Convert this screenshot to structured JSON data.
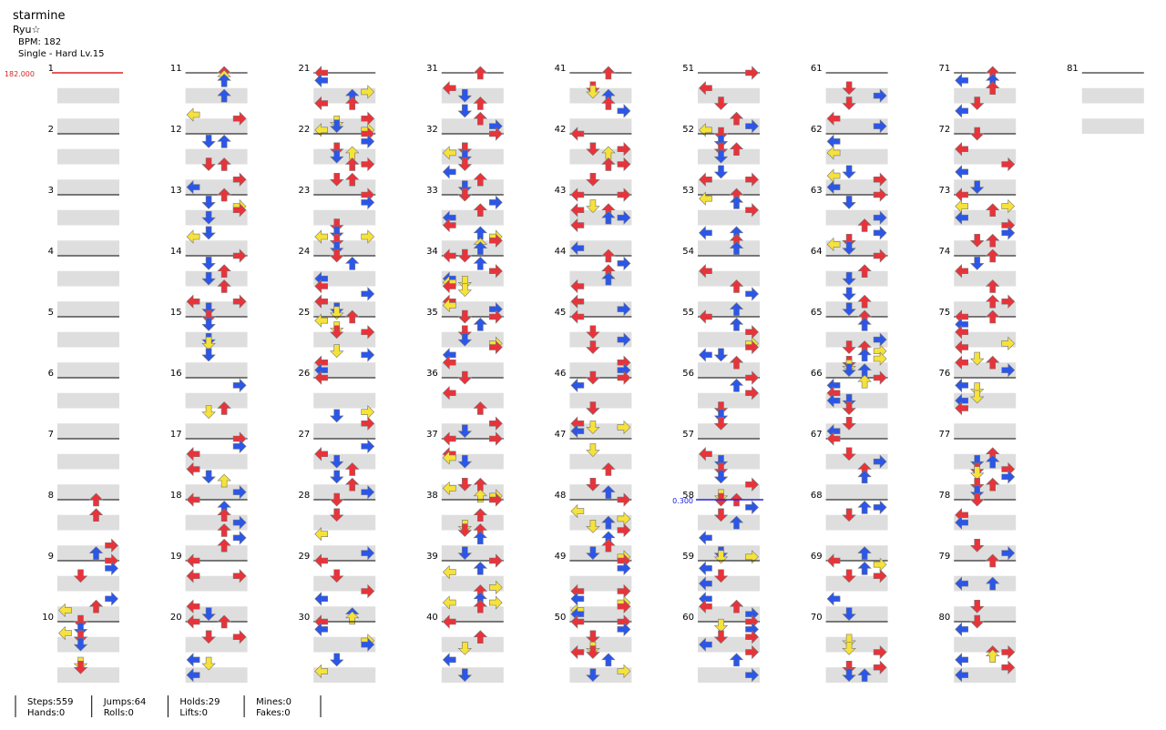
{
  "header": {
    "title": "starmine",
    "artist": "Ryu☆",
    "bpm": "BPM: 182",
    "difficulty": "Single - Hard  Lv.15"
  },
  "columns": [
    [
      1,
      2,
      3,
      4,
      5,
      6,
      7,
      8,
      9,
      10
    ],
    [
      11,
      12,
      13,
      14,
      15,
      16,
      17,
      18,
      19,
      20
    ],
    [
      21,
      22,
      23,
      24,
      25,
      26,
      27,
      28,
      29,
      30
    ],
    [
      31,
      32,
      33,
      34,
      35,
      36,
      37,
      38,
      39,
      40
    ],
    [
      41,
      42,
      43,
      44,
      45,
      46,
      47,
      48,
      49,
      50
    ],
    [
      51,
      52,
      53,
      54,
      55,
      56,
      57,
      58,
      59,
      60
    ],
    [
      61,
      62,
      63,
      64,
      65,
      66,
      67,
      68,
      69,
      70
    ],
    [
      71,
      72,
      73,
      74,
      75,
      76,
      77,
      78,
      79,
      80
    ],
    [
      81
    ]
  ],
  "bpm_marker": "182.000",
  "stop_marker": "0.300",
  "stats": [
    [
      "Steps:559",
      "Hands:0"
    ],
    [
      "Jumps:64",
      "Rolls:0"
    ],
    [
      "Holds:29",
      "Lifts:0"
    ],
    [
      "Mines:0",
      "Fakes:0"
    ]
  ]
}
